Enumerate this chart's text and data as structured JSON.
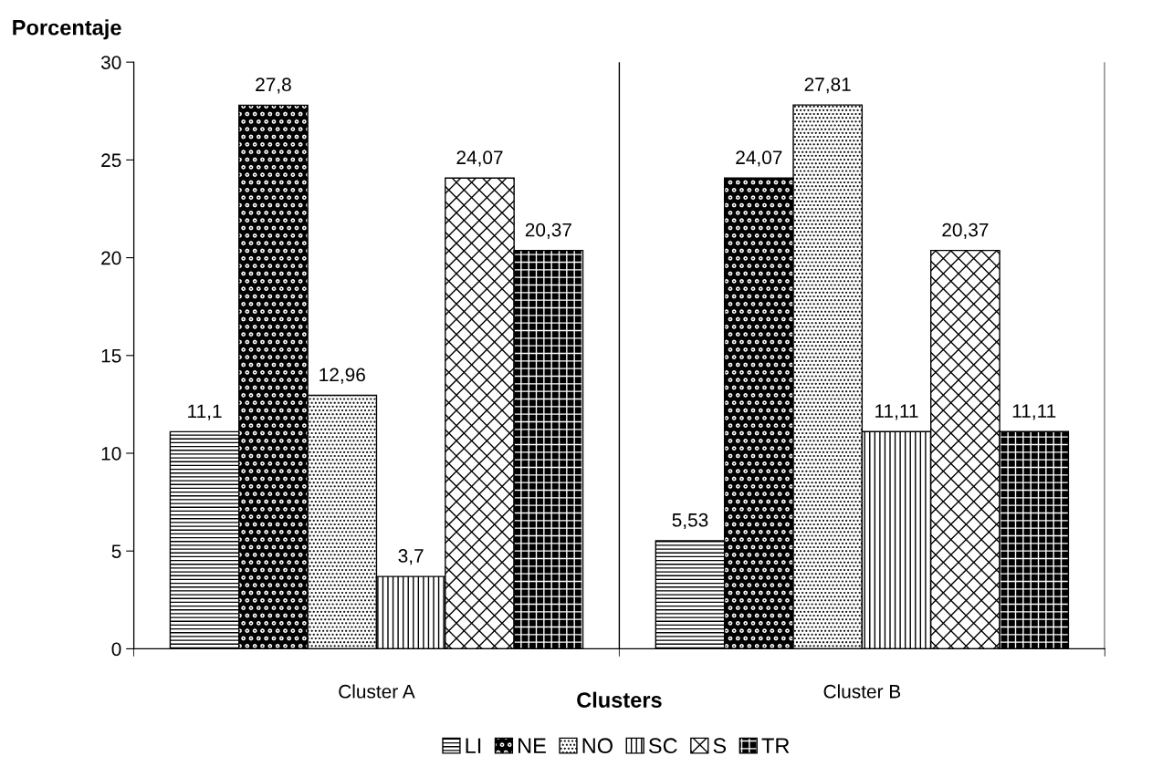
{
  "chart_data": {
    "type": "bar",
    "ylabel": "Porcentaje",
    "xlabel": "Clusters",
    "categories": [
      "Cluster A",
      "Cluster B"
    ],
    "series": [
      {
        "name": "LI",
        "color": "#000000",
        "values": [
          11.1,
          5.53
        ],
        "value_labels": [
          "11,1",
          "5,53"
        ]
      },
      {
        "name": "NE",
        "color": "#000000",
        "values": [
          27.8,
          24.07
        ],
        "value_labels": [
          "27,8",
          "24,07"
        ]
      },
      {
        "name": "NO",
        "color": "#000000",
        "values": [
          12.96,
          27.81
        ],
        "value_labels": [
          "12,96",
          "27,81"
        ]
      },
      {
        "name": "SC",
        "color": "#000000",
        "values": [
          3.7,
          11.11
        ],
        "value_labels": [
          "3,7",
          "11,11"
        ]
      },
      {
        "name": "S",
        "color": "#000000",
        "values": [
          24.07,
          20.37
        ],
        "value_labels": [
          "24,07",
          "20,37"
        ]
      },
      {
        "name": "TR",
        "color": "#000000",
        "values": [
          20.37,
          11.11
        ],
        "value_labels": [
          "20,37",
          "11,11"
        ]
      }
    ],
    "ylim": [
      0,
      30
    ],
    "yticks": [
      0,
      5,
      10,
      15,
      20,
      25,
      30
    ],
    "grid": "x",
    "legend": "bottom"
  }
}
